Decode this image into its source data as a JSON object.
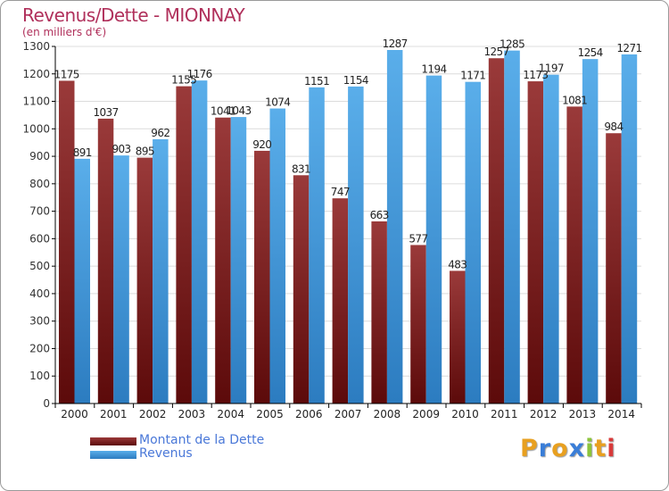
{
  "header": {
    "title": "Revenus/Dette - MIONNAY",
    "subtitle": "(en milliers d'€)"
  },
  "logo": {
    "text": "Proxiti",
    "letters": [
      {
        "ch": "P",
        "color": "#e8a020"
      },
      {
        "ch": "r",
        "color": "#3a7ed8"
      },
      {
        "ch": "o",
        "color": "#e8a020"
      },
      {
        "ch": "x",
        "color": "#3a7ed8"
      },
      {
        "ch": "i",
        "color": "#8cc43c"
      },
      {
        "ch": "t",
        "color": "#e8a020"
      },
      {
        "ch": "i",
        "color": "#d83a3a"
      }
    ]
  },
  "colors": {
    "title": "#b0305b",
    "dette_top": "#9a3a3a",
    "dette_bottom": "#5c0a0a",
    "revenus_top": "#5aaeea",
    "revenus_bottom": "#2c7cc0",
    "grid": "#dcdcdc",
    "axis": "#000000",
    "legend_text": "#4a78d8"
  },
  "chart_data": {
    "type": "bar",
    "title": "Revenus/Dette - MIONNAY",
    "subtitle": "(en milliers d'€)",
    "categories": [
      "2000",
      "2001",
      "2002",
      "2003",
      "2004",
      "2005",
      "2006",
      "2007",
      "2008",
      "2009",
      "2010",
      "2011",
      "2012",
      "2013",
      "2014"
    ],
    "series": [
      {
        "name": "Montant de la Dette",
        "values": [
          1175,
          1037,
          895,
          1155,
          1041,
          920,
          831,
          747,
          663,
          577,
          483,
          1257,
          1173,
          1081,
          984
        ]
      },
      {
        "name": "Revenus",
        "values": [
          891,
          903,
          962,
          1176,
          1043,
          1074,
          1151,
          1154,
          1287,
          1194,
          1171,
          1285,
          1197,
          1254,
          1271
        ]
      }
    ],
    "ylim": [
      0,
      1300
    ],
    "ytick_step": 100,
    "grid": true,
    "legend_position": "bottom-left"
  }
}
